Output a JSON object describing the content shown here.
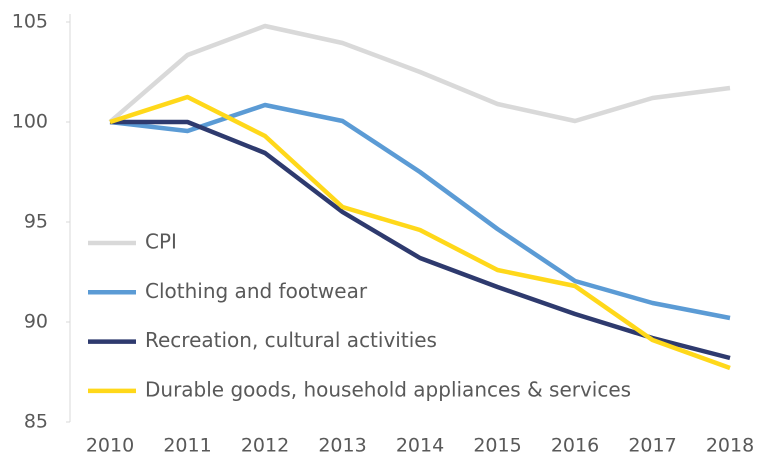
{
  "chart_data": {
    "type": "line",
    "x": [
      2010,
      2011,
      2012,
      2013,
      2014,
      2015,
      2016,
      2017,
      2018
    ],
    "xticks": [
      2010,
      2011,
      2012,
      2013,
      2014,
      2015,
      2016,
      2017,
      2018
    ],
    "xlim": [
      2010,
      2018
    ],
    "ylim": [
      85,
      105
    ],
    "yticks": [
      85,
      90,
      95,
      100,
      105
    ],
    "legend": "lower left",
    "series": [
      {
        "name": "CPI",
        "color": "#d9d9d9",
        "values": [
          100,
          103.35,
          104.8,
          103.95,
          102.5,
          100.9,
          100.05,
          101.2,
          101.7
        ]
      },
      {
        "name": "Clothing and footwear",
        "color": "#5b9bd5",
        "values": [
          100,
          99.55,
          100.85,
          100.05,
          97.5,
          94.65,
          92.05,
          90.95,
          90.2
        ]
      },
      {
        "name": "Recreation, cultural activities",
        "color": "#2e3a6e",
        "values": [
          100,
          100,
          98.45,
          95.5,
          93.2,
          91.75,
          90.4,
          89.2,
          88.2
        ]
      },
      {
        "name": "Durable goods, household appliances & services",
        "color": "#ffd81a",
        "values": [
          100,
          101.25,
          99.3,
          95.75,
          94.6,
          92.6,
          91.8,
          89.1,
          87.7
        ]
      }
    ]
  }
}
